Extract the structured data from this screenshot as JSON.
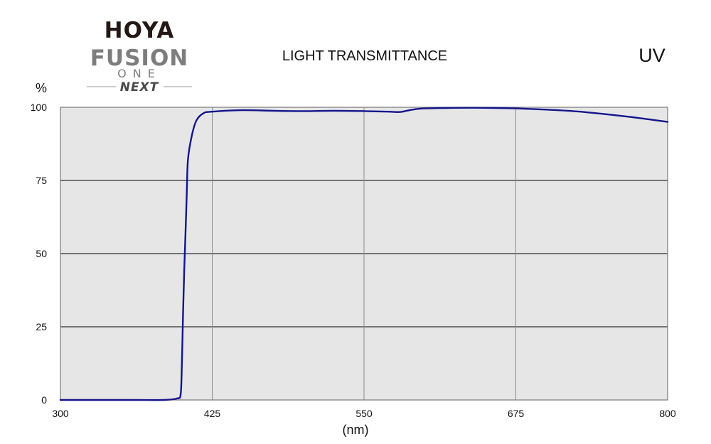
{
  "logo": {
    "brand": "HOYA",
    "line1": "FUSION",
    "line2": "ONE",
    "line3": "NEXT"
  },
  "chart_data": {
    "type": "line",
    "title": "LIGHT TRANSMITTANCE",
    "subtitle": "UV",
    "ylabel": "%",
    "xlabel": "(nm)",
    "xlim": [
      300,
      800
    ],
    "ylim": [
      0,
      100
    ],
    "x_ticks": [
      300,
      425,
      550,
      675,
      800
    ],
    "y_ticks": [
      0,
      25,
      50,
      75,
      100
    ],
    "grid": true,
    "colors": {
      "line": "#14148c",
      "plot_background": "#e6e6e6",
      "horizontal_grid": "#000000",
      "vertical_grid": "#8c8c8c"
    },
    "series": [
      {
        "x": [
          300,
          330,
          360,
          385,
          396,
          399,
          400,
          401,
          402,
          403,
          404,
          405,
          408,
          412,
          418,
          425,
          450,
          475,
          500,
          525,
          550,
          570,
          580,
          590,
          600,
          625,
          650,
          675,
          700,
          725,
          750,
          775,
          800
        ],
        "y": [
          0,
          0,
          0,
          0,
          0.5,
          2,
          12,
          30,
          45,
          57,
          70,
          82,
          90,
          95.5,
          98,
          98.5,
          99,
          98.8,
          98.7,
          98.8,
          98.7,
          98.5,
          98.4,
          99.2,
          99.6,
          99.8,
          99.8,
          99.6,
          99.2,
          98.6,
          97.6,
          96.4,
          95
        ]
      }
    ]
  }
}
